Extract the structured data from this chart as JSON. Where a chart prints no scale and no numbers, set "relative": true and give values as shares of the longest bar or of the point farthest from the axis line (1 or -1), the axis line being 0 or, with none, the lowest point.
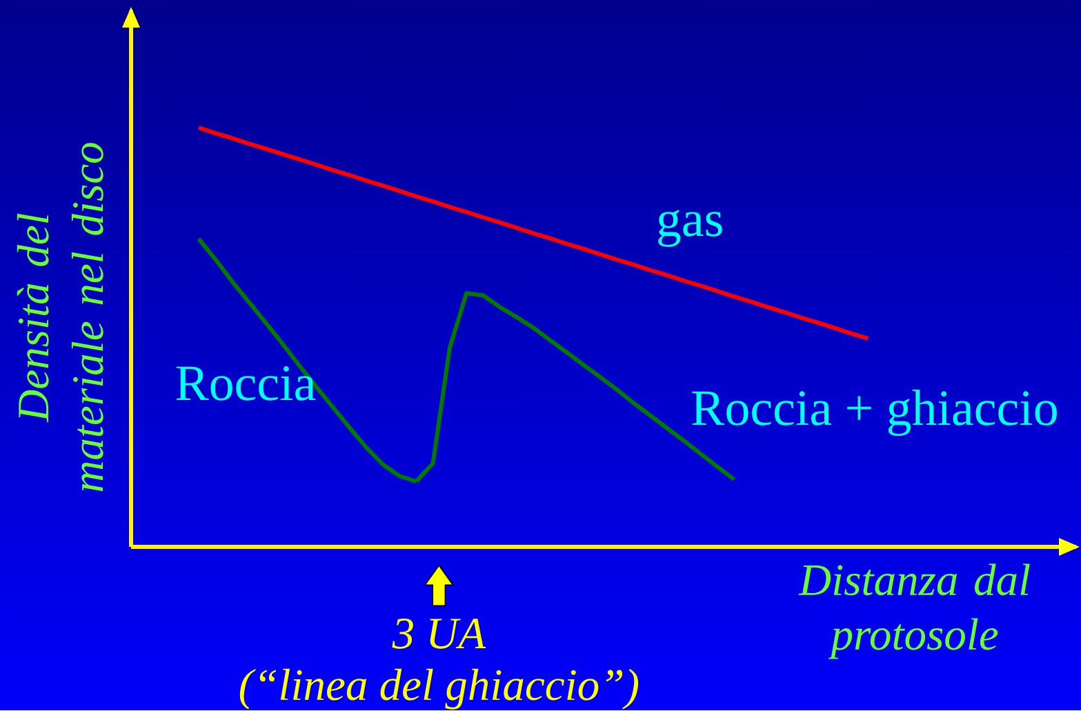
{
  "chart_data": {
    "type": "line",
    "relative": true,
    "xlabel": "Distanza dal protosole",
    "ylabel": "Densità del materiale nel disco",
    "categories": [
      null,
      null,
      null,
      null,
      null,
      null,
      null,
      null,
      null,
      null,
      null,
      null,
      null,
      null,
      null,
      null,
      null,
      null,
      null,
      null,
      null,
      null,
      null,
      null,
      null,
      null,
      null,
      null,
      null,
      null,
      null,
      null,
      null,
      null,
      null,
      null,
      null,
      null,
      null,
      null,
      null
    ],
    "series": [
      {
        "name": "gas",
        "color": "#ff0000",
        "values": [
          1,
          0.987,
          0.975,
          0.962,
          0.95,
          0.937,
          0.925,
          0.912,
          0.899,
          0.887,
          0.874,
          0.862,
          0.849,
          0.836,
          0.824,
          0.811,
          0.799,
          0.786,
          0.774,
          0.761,
          0.748,
          0.736,
          0.723,
          0.711,
          0.698,
          0.685,
          0.673,
          0.66,
          0.648,
          0.635,
          0.623,
          0.61,
          0.597,
          0.585,
          0.572,
          0.56,
          0.547,
          0.535,
          0.522,
          0.509,
          0.497
        ]
      },
      {
        "name": "Roccia",
        "color": "#007a00",
        "values": [
          0.735,
          0.686,
          0.633,
          0.584,
          0.535,
          0.485,
          0.433,
          0.383,
          0.334,
          0.285,
          0.238,
          0.197,
          0.169,
          0.156,
          null,
          null,
          null,
          null,
          null,
          null,
          null,
          null,
          null,
          null,
          null,
          null,
          null,
          null,
          null,
          null,
          null,
          null,
          null,
          null,
          null,
          null,
          null,
          null,
          null,
          null,
          null
        ]
      },
      {
        "name": "Roccia + ghiaccio",
        "color": "#007a00",
        "values": [
          null,
          null,
          null,
          null,
          null,
          null,
          null,
          null,
          null,
          null,
          null,
          null,
          null,
          0.156,
          0.199,
          0.474,
          0.605,
          0.6,
          0.572,
          0.548,
          0.523,
          0.493,
          0.464,
          0.434,
          0.405,
          0.375,
          0.343,
          0.313,
          0.283,
          0.253,
          0.222,
          0.191,
          0.161,
          null,
          null,
          null,
          null,
          null,
          null,
          null,
          null
        ]
      }
    ],
    "annotations": [
      "3 UA",
      "(“linea del ghiaccio”)"
    ]
  }
}
